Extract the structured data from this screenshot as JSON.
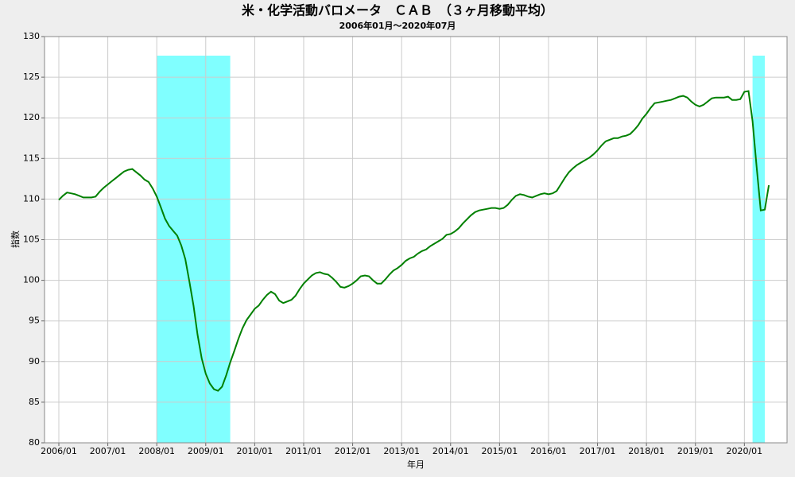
{
  "chart_data": {
    "type": "line",
    "title": "米・化学活動バロメータ　ＣＡＢ　（３ヶ月移動平均）",
    "subtitle": "2006年01月～2020年07月",
    "x_label": "年月",
    "y_label": "指数",
    "color": "#008000",
    "band_color": "#80ffff",
    "grid": true,
    "x": [
      "2006/01",
      "2006/02",
      "2006/03",
      "2006/04",
      "2006/05",
      "2006/06",
      "2006/07",
      "2006/08",
      "2006/09",
      "2006/10",
      "2006/11",
      "2006/12",
      "2007/01",
      "2007/02",
      "2007/03",
      "2007/04",
      "2007/05",
      "2007/06",
      "2007/07",
      "2007/08",
      "2007/09",
      "2007/10",
      "2007/11",
      "2007/12",
      "2008/01",
      "2008/02",
      "2008/03",
      "2008/04",
      "2008/05",
      "2008/06",
      "2008/07",
      "2008/08",
      "2008/09",
      "2008/10",
      "2008/11",
      "2008/12",
      "2009/01",
      "2009/02",
      "2009/03",
      "2009/04",
      "2009/05",
      "2009/06",
      "2009/07",
      "2009/08",
      "2009/09",
      "2009/10",
      "2009/11",
      "2009/12",
      "2010/01",
      "2010/02",
      "2010/03",
      "2010/04",
      "2010/05",
      "2010/06",
      "2010/07",
      "2010/08",
      "2010/09",
      "2010/10",
      "2010/11",
      "2010/12",
      "2011/01",
      "2011/02",
      "2011/03",
      "2011/04",
      "2011/05",
      "2011/06",
      "2011/07",
      "2011/08",
      "2011/09",
      "2011/10",
      "2011/11",
      "2011/12",
      "2012/01",
      "2012/02",
      "2012/03",
      "2012/04",
      "2012/05",
      "2012/06",
      "2012/07",
      "2012/08",
      "2012/09",
      "2012/10",
      "2012/11",
      "2012/12",
      "2013/01",
      "2013/02",
      "2013/03",
      "2013/04",
      "2013/05",
      "2013/06",
      "2013/07",
      "2013/08",
      "2013/09",
      "2013/10",
      "2013/11",
      "2013/12",
      "2014/01",
      "2014/02",
      "2014/03",
      "2014/04",
      "2014/05",
      "2014/06",
      "2014/07",
      "2014/08",
      "2014/09",
      "2014/10",
      "2014/11",
      "2014/12",
      "2015/01",
      "2015/02",
      "2015/03",
      "2015/04",
      "2015/05",
      "2015/06",
      "2015/07",
      "2015/08",
      "2015/09",
      "2015/10",
      "2015/11",
      "2015/12",
      "2016/01",
      "2016/02",
      "2016/03",
      "2016/04",
      "2016/05",
      "2016/06",
      "2016/07",
      "2016/08",
      "2016/09",
      "2016/10",
      "2016/11",
      "2016/12",
      "2017/01",
      "2017/02",
      "2017/03",
      "2017/04",
      "2017/05",
      "2017/06",
      "2017/07",
      "2017/08",
      "2017/09",
      "2017/10",
      "2017/11",
      "2017/12",
      "2018/01",
      "2018/02",
      "2018/03",
      "2018/04",
      "2018/05",
      "2018/06",
      "2018/07",
      "2018/08",
      "2018/09",
      "2018/10",
      "2018/11",
      "2018/12",
      "2019/01",
      "2019/02",
      "2019/03",
      "2019/04",
      "2019/05",
      "2019/06",
      "2019/07",
      "2019/08",
      "2019/09",
      "2019/10",
      "2019/11",
      "2019/12",
      "2020/01",
      "2020/02",
      "2020/03",
      "2020/04",
      "2020/05",
      "2020/06",
      "2020/07"
    ],
    "values": [
      109.9,
      110.4,
      110.8,
      110.7,
      110.6,
      110.4,
      110.2,
      110.2,
      110.2,
      110.3,
      110.9,
      111.4,
      111.8,
      112.2,
      112.6,
      113.0,
      113.4,
      113.6,
      113.7,
      113.3,
      112.9,
      112.4,
      112.1,
      111.3,
      110.3,
      109.0,
      107.6,
      106.7,
      106.1,
      105.5,
      104.3,
      102.6,
      99.8,
      96.9,
      93.3,
      90.4,
      88.5,
      87.3,
      86.6,
      86.4,
      86.9,
      88.3,
      89.9,
      91.3,
      92.8,
      94.1,
      95.1,
      95.8,
      96.5,
      96.9,
      97.6,
      98.2,
      98.6,
      98.3,
      97.5,
      97.2,
      97.4,
      97.6,
      98.1,
      98.9,
      99.6,
      100.1,
      100.6,
      100.9,
      101.0,
      100.8,
      100.7,
      100.3,
      99.8,
      99.2,
      99.1,
      99.3,
      99.6,
      100.0,
      100.5,
      100.6,
      100.5,
      100.0,
      99.6,
      99.6,
      100.1,
      100.7,
      101.2,
      101.5,
      101.9,
      102.4,
      102.7,
      102.9,
      103.3,
      103.6,
      103.8,
      104.2,
      104.5,
      104.8,
      105.1,
      105.6,
      105.7,
      106.0,
      106.4,
      107.0,
      107.5,
      108.0,
      108.4,
      108.6,
      108.7,
      108.8,
      108.9,
      108.9,
      108.8,
      108.9,
      109.3,
      109.9,
      110.4,
      110.6,
      110.5,
      110.3,
      110.2,
      110.4,
      110.6,
      110.7,
      110.6,
      110.7,
      111.0,
      111.8,
      112.6,
      113.3,
      113.8,
      114.2,
      114.5,
      114.8,
      115.1,
      115.5,
      116.0,
      116.6,
      117.1,
      117.3,
      117.5,
      117.5,
      117.7,
      117.8,
      118.0,
      118.5,
      119.1,
      119.9,
      120.5,
      121.2,
      121.8,
      121.9,
      122.0,
      122.1,
      122.2,
      122.4,
      122.6,
      122.7,
      122.5,
      122.0,
      121.6,
      121.4,
      121.6,
      122.0,
      122.4,
      122.5,
      122.5,
      122.5,
      122.6,
      122.2,
      122.2,
      122.3,
      123.2,
      123.3,
      119.6,
      114.0,
      108.6,
      108.7,
      111.7
    ],
    "shaded": [
      {
        "from": "2008/01",
        "to": "2009/07"
      },
      {
        "from": "2020/03",
        "to": "2020/06"
      }
    ],
    "xticks": [
      "2006/01",
      "2007/01",
      "2008/01",
      "2009/01",
      "2010/01",
      "2011/01",
      "2012/01",
      "2013/01",
      "2014/01",
      "2015/01",
      "2016/01",
      "2017/01",
      "2018/01",
      "2019/01",
      "2020/01"
    ],
    "ylim": [
      80,
      130
    ],
    "yticks": [
      80,
      85,
      90,
      95,
      100,
      105,
      110,
      115,
      120,
      125,
      130
    ]
  }
}
